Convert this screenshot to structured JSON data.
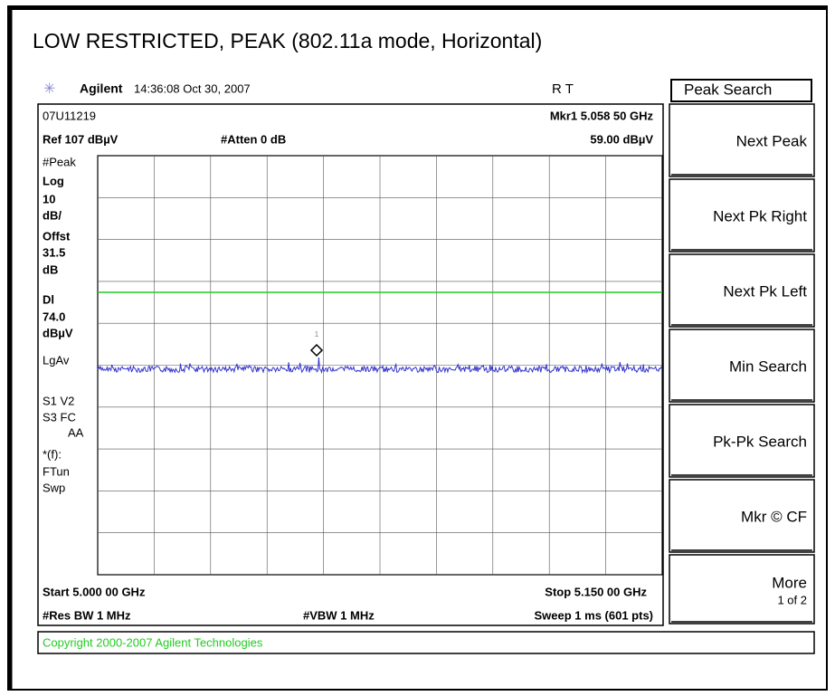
{
  "title": "LOW RESTRICTED, PEAK (802.11a mode, Horizontal)",
  "header": {
    "brand": "Agilent",
    "time": "14:36:08  Oct 30, 2007",
    "status": "R   T"
  },
  "softkeys": {
    "title": "Peak Search",
    "keys": [
      [
        "Next Peak"
      ],
      [
        "Next Pk Right"
      ],
      [
        "Next Pk Left"
      ],
      [
        "Min Search"
      ],
      [
        "Pk-Pk Search"
      ],
      [
        "Mkr © CF"
      ],
      [
        "More",
        "1 of 2"
      ]
    ]
  },
  "display": {
    "id": "07U11219",
    "marker_label": "Mkr1  5.058 50 GHz",
    "ref": "Ref 107 dBµV",
    "atten": "#Atten 0 dB",
    "marker_value": "59.00 dBµV",
    "left_labels": [
      "#Peak",
      "Log",
      "10",
      "dB/",
      "Offst",
      "31.5",
      "dB",
      "Dl",
      "74.0",
      "dBµV",
      "LgAv",
      "S1  V2",
      "S3  FC",
      "AA",
      "*(f):",
      "FTun",
      "Swp"
    ],
    "marker_number": "1",
    "start": "Start 5.000 00 GHz",
    "stop": "Stop 5.150 00 GHz",
    "rbw": "#Res BW 1 MHz",
    "vbw": "#VBW 1 MHz",
    "sweep": "Sweep 1 ms (601 pts)"
  },
  "footer": "Copyright 2000-2007 Agilent Technologies"
}
